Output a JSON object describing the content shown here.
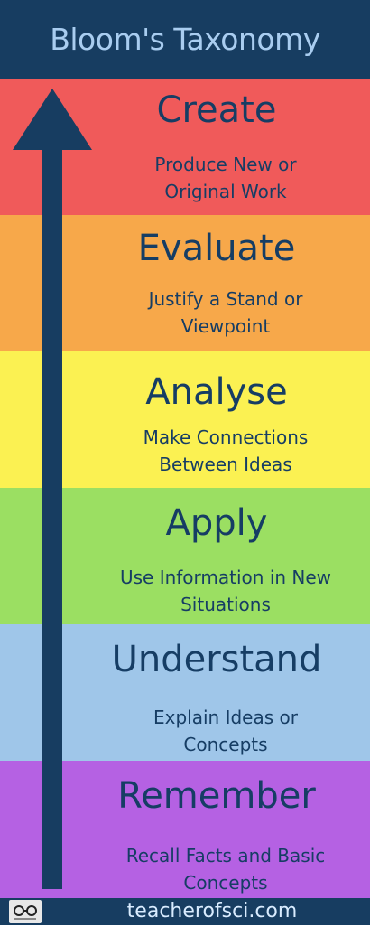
{
  "title": "Bloom's Taxonomy",
  "levels": [
    {
      "name": "Create",
      "desc_line1": "Produce New or",
      "desc_line2": "Original Work",
      "color": "#f05a5a"
    },
    {
      "name": "Evaluate",
      "desc_line1": "Justify a Stand or",
      "desc_line2": "Viewpoint",
      "color": "#f7a84a"
    },
    {
      "name": "Analyse",
      "desc_line1": "Make Connections",
      "desc_line2": "Between Ideas",
      "color": "#fbf152"
    },
    {
      "name": "Apply",
      "desc_line1": "Use Information in New",
      "desc_line2": "Situations",
      "color": "#9bdf62"
    },
    {
      "name": "Understand",
      "desc_line1": "Explain Ideas or",
      "desc_line2": "Concepts",
      "color": "#9fc6e9"
    },
    {
      "name": "Remember",
      "desc_line1": "Recall Facts and Basic",
      "desc_line2": "Concepts",
      "color": "#b561e3"
    }
  ],
  "footer": {
    "site": "teacherofsci.com",
    "logo_icon": "glasses-logo-icon"
  },
  "colors": {
    "title_bar": "#173d61",
    "title_text": "#a9cdf0",
    "arrow": "#173d61",
    "text": "#163d64"
  }
}
